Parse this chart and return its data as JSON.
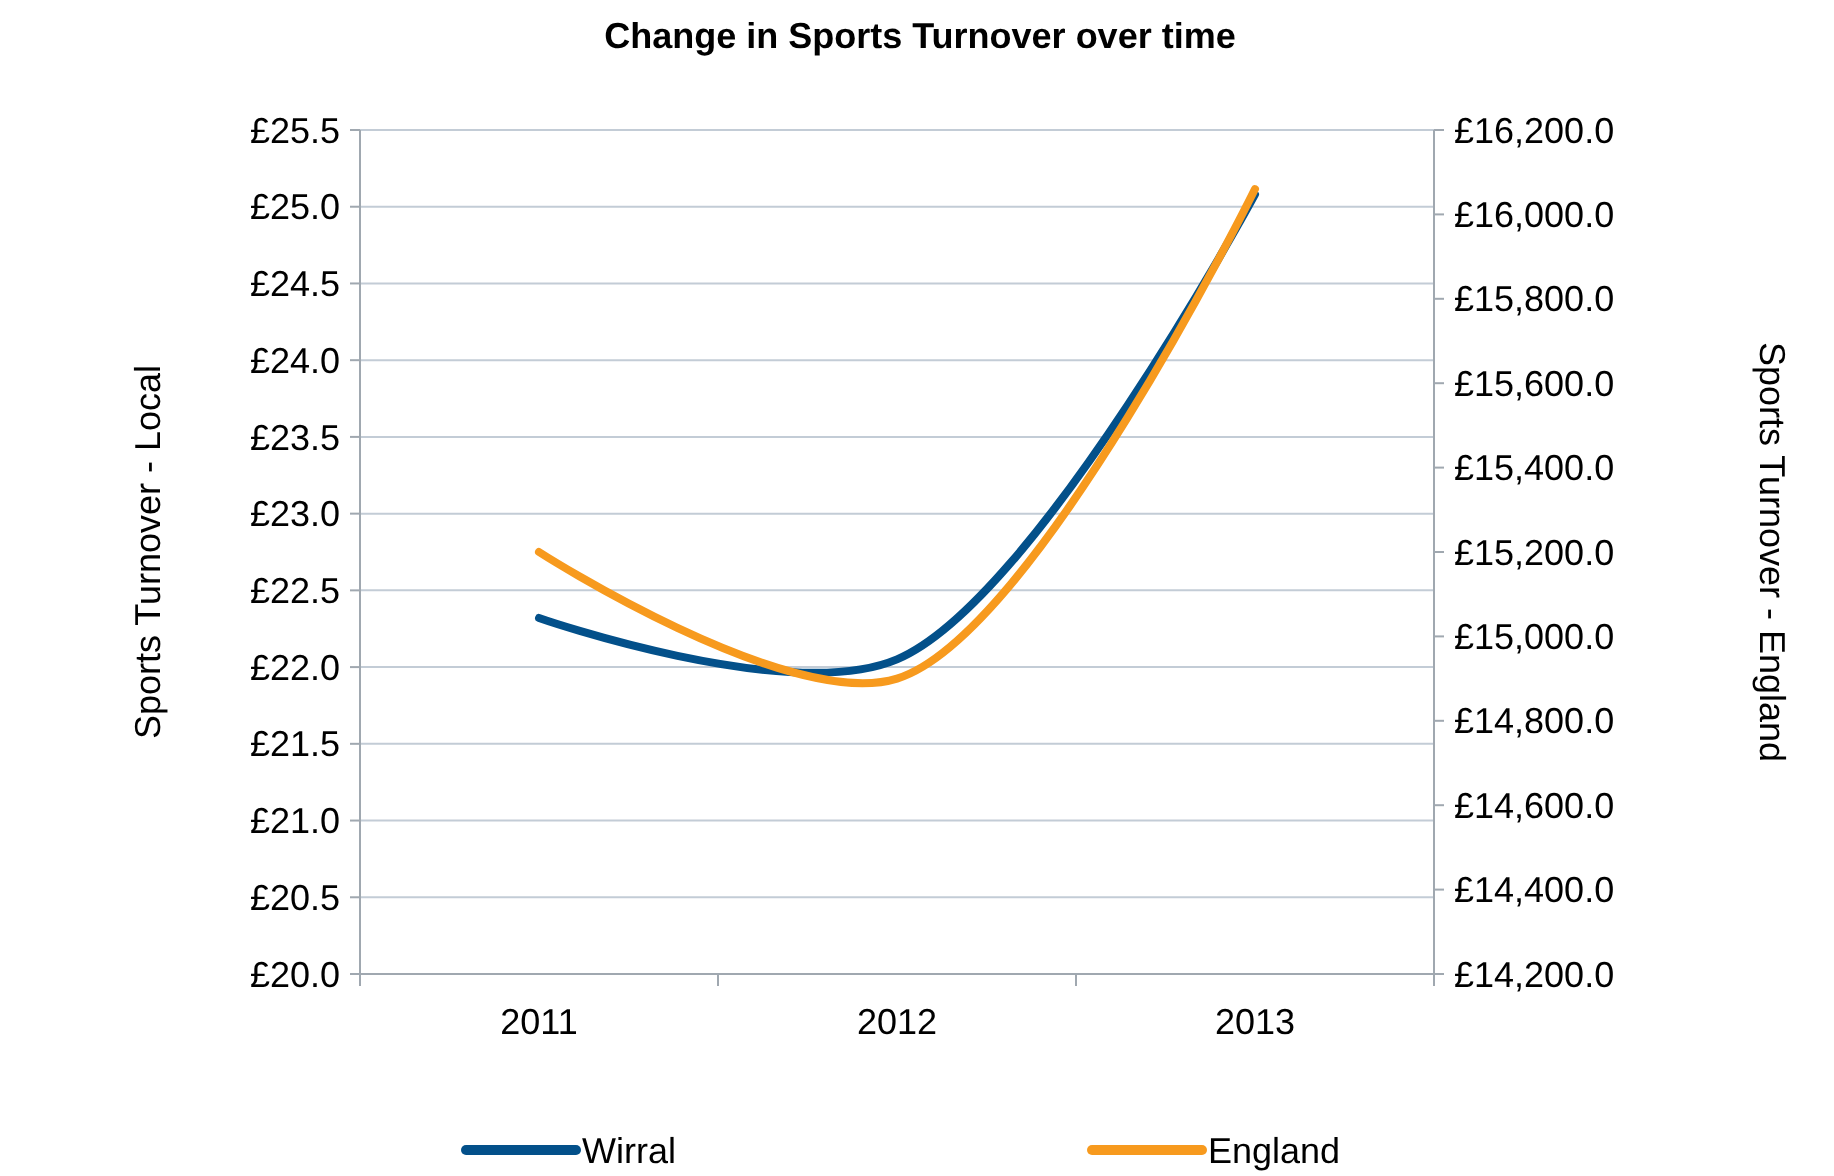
{
  "chart_data": {
    "type": "line",
    "title": "Change in Sports Turnover over time",
    "ylabel": "Sports Turnover - Local",
    "y2label": "Sports Turnover - England",
    "categories": [
      "2011",
      "2012",
      "2013"
    ],
    "series": [
      {
        "name": "Wirral",
        "color": "#03508a",
        "values": [
          22.32,
          22.05,
          25.08
        ]
      },
      {
        "name": "England",
        "color": "#f79a1e",
        "values": [
          15200,
          14900,
          16060
        ],
        "axis": "y2"
      }
    ],
    "ylim": [
      20,
      25.5
    ],
    "yticks": [
      {
        "value": 20,
        "label": "£20.0"
      },
      {
        "value": 20.5,
        "label": "£20.5"
      },
      {
        "value": 21,
        "label": "£21.0"
      },
      {
        "value": 21.5,
        "label": "£21.5"
      },
      {
        "value": 22,
        "label": "£22.0"
      },
      {
        "value": 22.5,
        "label": "£22.5"
      },
      {
        "value": 23,
        "label": "£23.0"
      },
      {
        "value": 23.5,
        "label": "£23.5"
      },
      {
        "value": 24,
        "label": "£24.0"
      },
      {
        "value": 24.5,
        "label": "£24.5"
      },
      {
        "value": 25,
        "label": "£25.0"
      },
      {
        "value": 25.5,
        "label": "£25.5"
      }
    ],
    "y2lim": [
      14200,
      16200
    ],
    "y2ticks": [
      {
        "value": 14200,
        "label": "£14,200.0"
      },
      {
        "value": 14400,
        "label": "£14,400.0"
      },
      {
        "value": 14600,
        "label": "£14,600.0"
      },
      {
        "value": 14800,
        "label": "£14,800.0"
      },
      {
        "value": 15000,
        "label": "£15,000.0"
      },
      {
        "value": 15200,
        "label": "£15,200.0"
      },
      {
        "value": 15400,
        "label": "£15,400.0"
      },
      {
        "value": 15600,
        "label": "£15,600.0"
      },
      {
        "value": 15800,
        "label": "£15,800.0"
      },
      {
        "value": 16000,
        "label": "£16,000.0"
      },
      {
        "value": 16200,
        "label": "£16,200.0"
      }
    ],
    "grid": "y",
    "legend": "bottom",
    "marker": "none",
    "line_style": "solid"
  }
}
